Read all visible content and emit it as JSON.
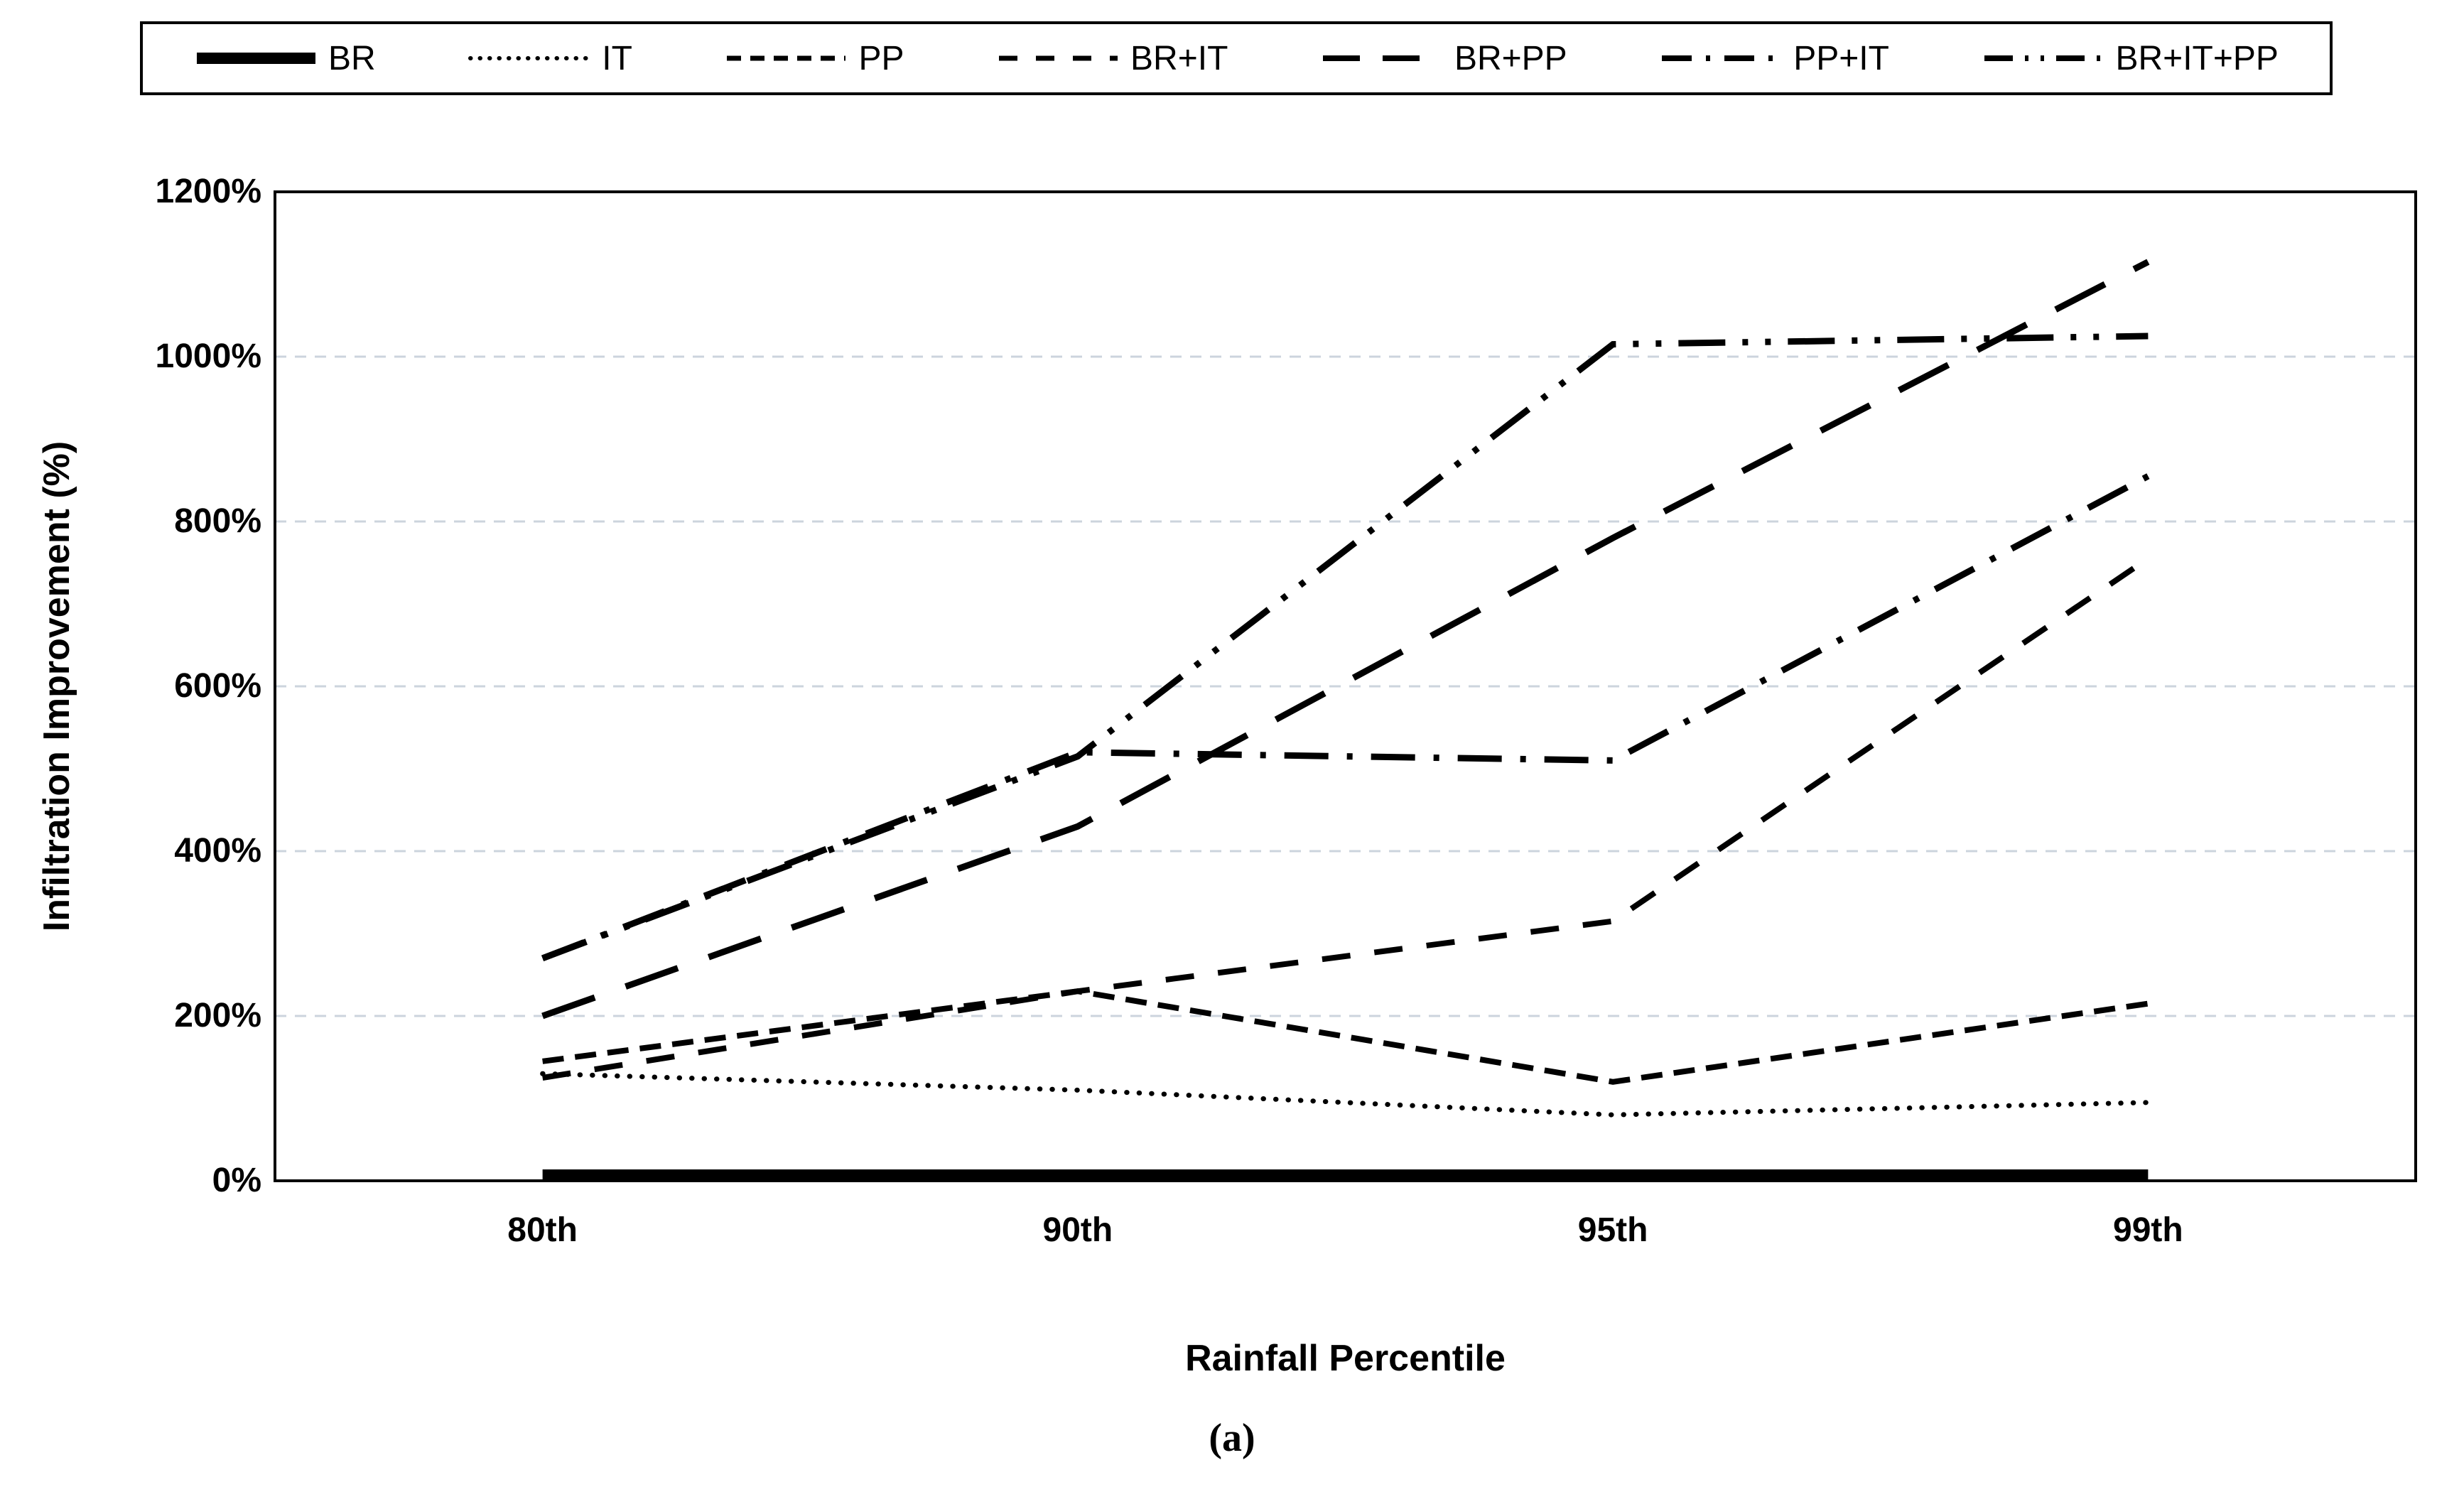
{
  "figure": {
    "caption": "(a)"
  },
  "chart_data": {
    "type": "line",
    "title": "",
    "categories": [
      "80th",
      "90th",
      "95th",
      "99th"
    ],
    "series": [
      {
        "name": "BR",
        "style": "solid-thick",
        "values": [
          0,
          0,
          0,
          0
        ]
      },
      {
        "name": "IT",
        "style": "dotted",
        "values": [
          130,
          110,
          80,
          95
        ]
      },
      {
        "name": "PP",
        "style": "dash-short",
        "values": [
          145,
          230,
          120,
          215
        ]
      },
      {
        "name": "BR+IT",
        "style": "dash-medium",
        "values": [
          125,
          230,
          315,
          755
        ]
      },
      {
        "name": "BR+PP",
        "style": "dash-long",
        "values": [
          200,
          430,
          780,
          1115
        ]
      },
      {
        "name": "PP+IT",
        "style": "dash-dot",
        "values": [
          270,
          520,
          510,
          855
        ]
      },
      {
        "name": "BR+IT+PP",
        "style": "dash-dot-dot",
        "values": [
          270,
          515,
          1015,
          1025
        ]
      }
    ],
    "xlabel": "Rainfall Percentile",
    "ylabel": "Infiltration Improvement (%)",
    "ylim": [
      0,
      1200
    ],
    "ytick_step": 200,
    "yticks": [
      "0%",
      "200%",
      "400%",
      "600%",
      "800%",
      "1000%",
      "1200%"
    ],
    "grid": true,
    "legend_position": "top",
    "line_color": "#000000",
    "grid_color": "#ccd4dd",
    "background": "#ffffff"
  }
}
